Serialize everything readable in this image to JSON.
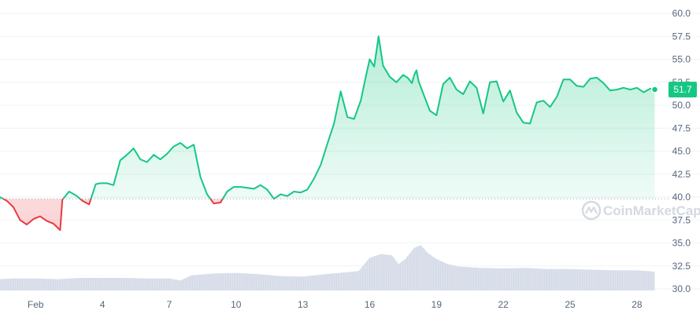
{
  "watermark": {
    "text": "CoinMarketCap"
  },
  "colors": {
    "up": "#16c784",
    "down": "#ea3943",
    "grid": "#eff2f5",
    "baseline": "#a6b0c3",
    "volume": "#cfd6e4",
    "tick_text": "#58667e"
  },
  "chart_data": {
    "type": "area",
    "title": "",
    "xlabel": "",
    "ylabel": "",
    "x_ticks": [
      "Feb",
      "4",
      "7",
      "10",
      "13",
      "16",
      "19",
      "22",
      "25",
      "28"
    ],
    "x_tick_days": [
      1,
      4,
      7,
      10,
      13,
      16,
      19,
      22,
      25,
      28
    ],
    "x_range": [
      -0.6,
      29.1
    ],
    "y_ticks": [
      "30.0",
      "32.5",
      "35.0",
      "37.5",
      "40.0",
      "42.5",
      "45.0",
      "47.5",
      "50.0",
      "52.5",
      "55.0",
      "57.5",
      "60.0"
    ],
    "ylim": [
      30.0,
      60.0
    ],
    "reference_price": 39.8,
    "current_price": {
      "label": "51.7",
      "value": 51.7
    },
    "grid": true,
    "series": [
      {
        "kind": "price",
        "x": [
          -0.6,
          -0.3,
          0.0,
          0.3,
          0.6,
          0.9,
          1.2,
          1.5,
          1.8,
          2.1,
          2.2,
          2.5,
          2.8,
          3.1,
          3.4,
          3.7,
          3.9,
          4.2,
          4.5,
          4.8,
          5.1,
          5.4,
          5.7,
          6.0,
          6.3,
          6.6,
          6.9,
          7.2,
          7.5,
          7.8,
          8.1,
          8.4,
          8.7,
          9.0,
          9.3,
          9.6,
          9.9,
          10.2,
          10.5,
          10.8,
          11.1,
          11.4,
          11.7,
          12.0,
          12.3,
          12.6,
          12.9,
          13.2,
          13.5,
          13.8,
          14.1,
          14.4,
          14.7,
          15.0,
          15.3,
          15.6,
          15.8,
          16.0,
          16.2,
          16.4,
          16.6,
          16.9,
          17.2,
          17.5,
          17.7,
          17.9,
          18.0,
          18.1,
          18.2,
          18.4,
          18.7,
          19.0,
          19.3,
          19.6,
          19.9,
          20.2,
          20.5,
          20.8,
          21.1,
          21.4,
          21.7,
          22.0,
          22.3,
          22.6,
          22.9,
          23.2,
          23.5,
          23.8,
          24.1,
          24.4,
          24.7,
          25.0,
          25.3,
          25.6,
          25.9,
          26.2,
          26.5,
          26.8,
          27.1,
          27.4,
          27.7,
          28.0,
          28.3,
          28.6,
          28.8
        ],
        "y": [
          40.0,
          39.6,
          38.9,
          37.5,
          37.0,
          37.6,
          37.9,
          37.4,
          37.1,
          36.4,
          39.7,
          40.6,
          40.2,
          39.6,
          39.2,
          41.4,
          41.5,
          41.5,
          41.3,
          44.0,
          44.6,
          45.3,
          44.1,
          43.8,
          44.6,
          44.1,
          44.7,
          45.5,
          45.9,
          45.3,
          45.7,
          42.2,
          40.3,
          39.3,
          39.4,
          40.6,
          41.1,
          41.1,
          41.0,
          40.9,
          41.3,
          40.8,
          39.8,
          40.3,
          40.1,
          40.6,
          40.5,
          40.8,
          42.0,
          43.5,
          45.8,
          48.0,
          51.5,
          48.7,
          48.5,
          50.5,
          52.8,
          55.0,
          54.2,
          57.5,
          54.3,
          53.1,
          52.5,
          53.3,
          53.0,
          52.4,
          53.3,
          53.8,
          52.6,
          51.3,
          49.4,
          48.9,
          52.3,
          53.0,
          51.7,
          51.2,
          52.6,
          51.9,
          49.1,
          52.5,
          52.6,
          50.4,
          51.6,
          49.2,
          48.1,
          48.0,
          50.3,
          50.5,
          49.8,
          50.9,
          52.8,
          52.8,
          52.1,
          52.0,
          52.9,
          53.0,
          52.4,
          51.6,
          51.7,
          51.9,
          51.7,
          51.9,
          51.4,
          51.8,
          51.7
        ]
      },
      {
        "kind": "volume",
        "x": [
          -0.6,
          0.0,
          1.0,
          2.0,
          3.0,
          4.0,
          5.0,
          6.0,
          7.0,
          7.5,
          8.0,
          9.0,
          10.0,
          11.0,
          12.0,
          13.0,
          14.0,
          15.0,
          15.5,
          16.0,
          16.5,
          17.0,
          17.3,
          17.6,
          18.0,
          18.3,
          18.6,
          19.0,
          19.5,
          20.0,
          21.0,
          22.0,
          23.0,
          24.0,
          25.0,
          26.0,
          27.0,
          28.0,
          28.8
        ],
        "y": [
          0.18,
          0.19,
          0.19,
          0.18,
          0.2,
          0.2,
          0.2,
          0.19,
          0.19,
          0.16,
          0.24,
          0.27,
          0.28,
          0.26,
          0.23,
          0.22,
          0.26,
          0.29,
          0.31,
          0.52,
          0.58,
          0.56,
          0.42,
          0.5,
          0.68,
          0.72,
          0.6,
          0.5,
          0.42,
          0.38,
          0.36,
          0.35,
          0.36,
          0.34,
          0.34,
          0.33,
          0.32,
          0.32,
          0.3
        ]
      }
    ]
  }
}
